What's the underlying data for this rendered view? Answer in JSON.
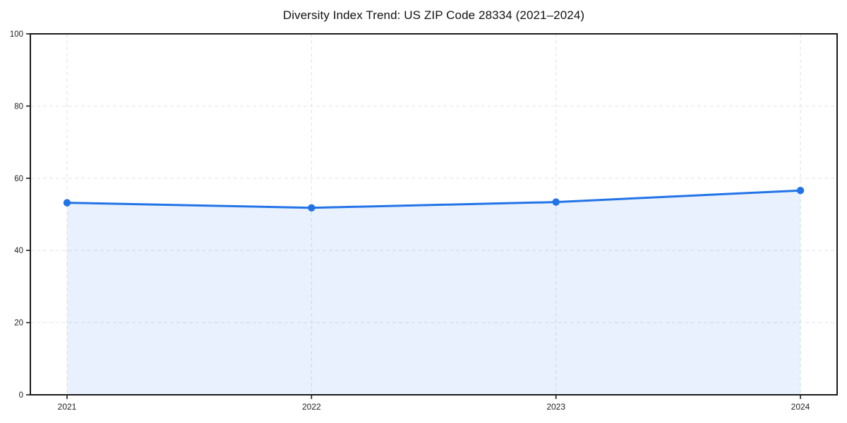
{
  "page": {
    "background": "#ffffff"
  },
  "chart_data": {
    "type": "area",
    "title": "Diversity Index Trend: US ZIP Code 28334 (2021–2024)",
    "x": [
      "2021",
      "2022",
      "2023",
      "2024"
    ],
    "series": [
      {
        "name": "Diversity Index",
        "values": [
          53.2,
          51.8,
          53.4,
          56.6
        ]
      }
    ],
    "xlabel": "",
    "ylabel": "",
    "ylim": [
      0,
      100
    ],
    "yticks": [
      0,
      20,
      40,
      60,
      80,
      100
    ],
    "grid": true,
    "grid_style": "dashed",
    "legend": "none",
    "marker": "circle",
    "colors": {
      "line": "#2273e8",
      "marker": "#2273e8",
      "fill": "rgba(34,115,232,0.10)",
      "grid": "#e2e2e2",
      "axis": "#1a1a1a",
      "tick_label": "#1f1f1f",
      "title": "#111111"
    }
  }
}
